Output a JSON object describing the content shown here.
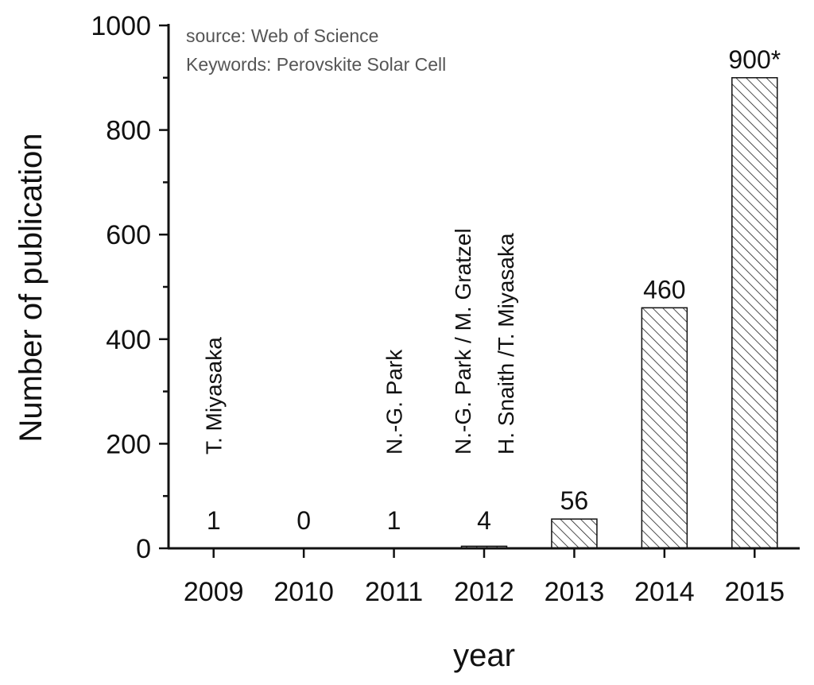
{
  "chart_data": {
    "type": "bar",
    "categories": [
      "2009",
      "2010",
      "2011",
      "2012",
      "2013",
      "2014",
      "2015"
    ],
    "values": [
      1,
      0,
      1,
      4,
      56,
      460,
      900
    ],
    "value_labels": [
      "1",
      "0",
      "1",
      "4",
      "56",
      "460",
      "900*"
    ],
    "annotations": [
      {
        "category": "2009",
        "lines": [
          "T. Miyasaka"
        ]
      },
      {
        "category": "2011",
        "lines": [
          "N.-G. Park"
        ]
      },
      {
        "category": "2012",
        "lines": [
          "N.-G. Park / M. Gratzel",
          "H. Snaith /T. Miyasaka"
        ]
      }
    ],
    "notes": [
      "source: Web of Science",
      "Keywords: Perovskite Solar Cell"
    ],
    "xlabel": "year",
    "ylabel": "Number of publication",
    "ylim": [
      0,
      1000
    ],
    "yticks": [
      0,
      200,
      400,
      600,
      800,
      1000
    ],
    "bar_pattern": "diagonal-hatch",
    "bar_color": "#000000",
    "grid": false,
    "legend": "none"
  }
}
